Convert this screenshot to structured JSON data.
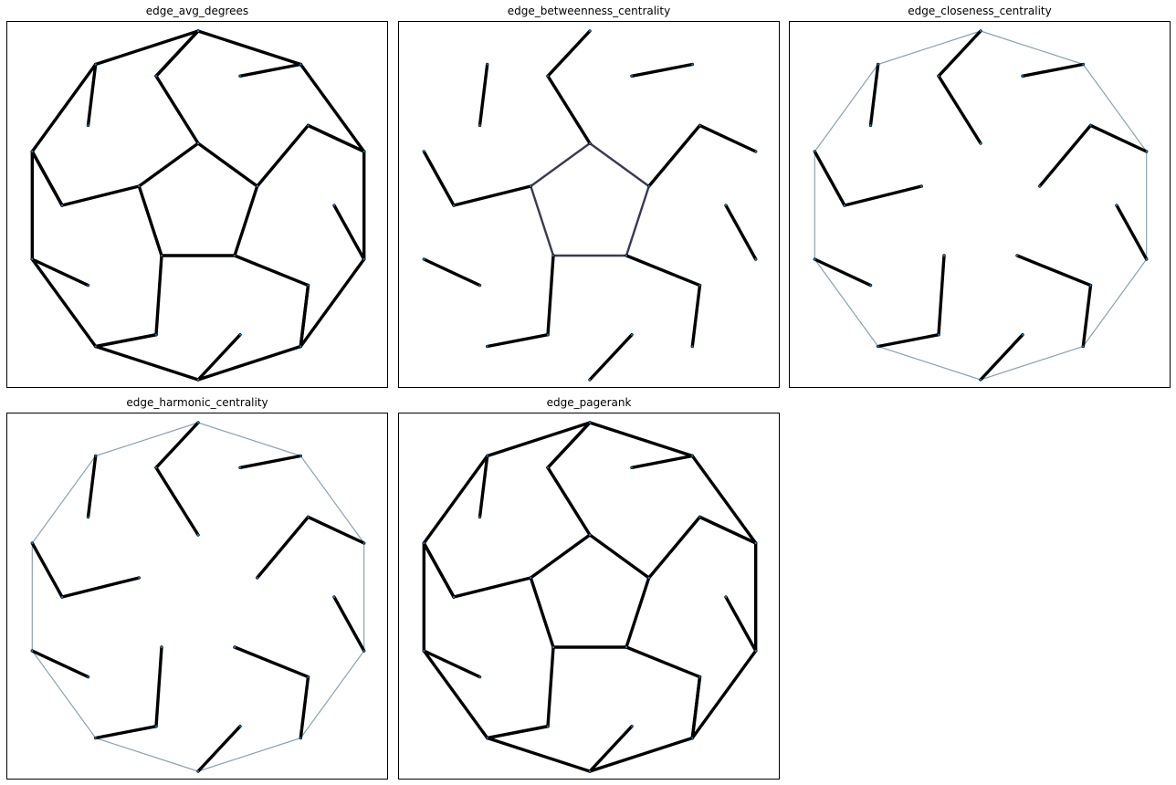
{
  "colors": {
    "heavy": "#000000",
    "mid": "#3b3a52",
    "light": "#8aa3b0",
    "node": "#1f77b4"
  },
  "panels": [
    {
      "title": "edge_avg_degrees",
      "weights": {
        "outer": "heavy",
        "spoke": "heavy",
        "mid": "heavy",
        "inner": "heavy",
        "cross": "heavy"
      }
    },
    {
      "title": "edge_betweenness_centrality",
      "weights": {
        "outer": "none",
        "spoke": "mid",
        "mid": "heavy",
        "inner": "mid",
        "cross": "heavy"
      }
    },
    {
      "title": "edge_closeness_centrality",
      "weights": {
        "outer": "light",
        "spoke": "none",
        "mid": "heavy",
        "inner": "none",
        "cross": "heavy"
      }
    },
    {
      "title": "edge_harmonic_centrality",
      "weights": {
        "outer": "light",
        "spoke": "none",
        "mid": "heavy",
        "inner": "none",
        "cross": "heavy"
      }
    },
    {
      "title": "edge_pagerank",
      "weights": {
        "outer": "heavy",
        "spoke": "heavy",
        "mid": "heavy",
        "inner": "heavy",
        "cross": "heavy"
      }
    }
  ]
}
